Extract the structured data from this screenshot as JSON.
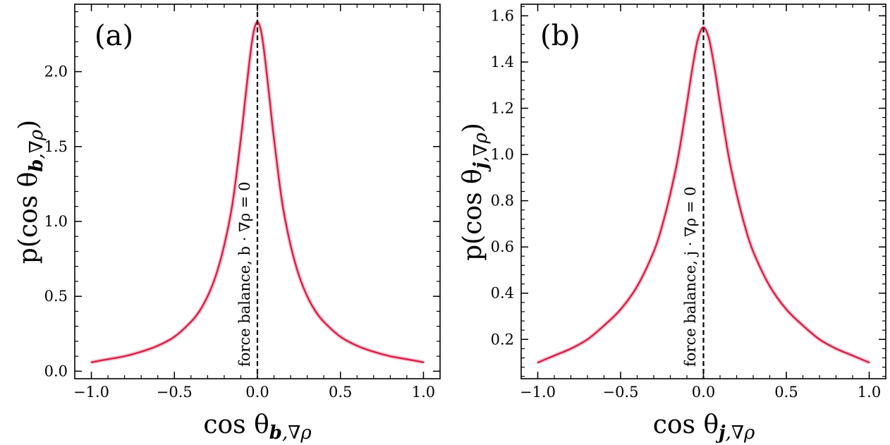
{
  "chart_data": [
    {
      "type": "line",
      "panel_label": "(a)",
      "xlabel_main": "cos θ",
      "xlabel_sub_bold": "b",
      "xlabel_sub_rest": ",∇ρ",
      "ylabel_pre": "p(cos θ",
      "ylabel_sub_bold": "b",
      "ylabel_sub_rest": ",∇ρ",
      "ylabel_post": ")",
      "xlim": [
        -1.1,
        1.1
      ],
      "ylim": [
        -0.05,
        2.45
      ],
      "x_ticks": [
        -1.0,
        -0.5,
        0.0,
        0.5,
        1.0
      ],
      "x_tick_labels": [
        "−1.0",
        "−0.5",
        "0.0",
        "0.5",
        "1.0"
      ],
      "y_ticks": [
        0.0,
        0.5,
        1.0,
        1.5,
        2.0
      ],
      "y_tick_labels": [
        "0.0",
        "0.5",
        "1.0",
        "1.5",
        "2.0"
      ],
      "reference_line_x": 0.0,
      "annotation": "force balance, b · ∇ρ = 0",
      "series_color": "#d62048",
      "band_color": "#f4a6b6",
      "series": [
        {
          "name": "p(cos θ_b,∇ρ)",
          "x": [
            -1.0,
            -0.9,
            -0.8,
            -0.7,
            -0.6,
            -0.5,
            -0.4,
            -0.35,
            -0.3,
            -0.25,
            -0.2,
            -0.15,
            -0.1,
            -0.07,
            -0.04,
            -0.02,
            0.0,
            0.02,
            0.04,
            0.07,
            0.1,
            0.15,
            0.2,
            0.25,
            0.3,
            0.35,
            0.4,
            0.5,
            0.6,
            0.7,
            0.8,
            0.9,
            1.0
          ],
          "y": [
            0.06,
            0.08,
            0.1,
            0.13,
            0.17,
            0.23,
            0.33,
            0.4,
            0.5,
            0.64,
            0.84,
            1.12,
            1.55,
            1.85,
            2.14,
            2.28,
            2.33,
            2.28,
            2.14,
            1.85,
            1.55,
            1.12,
            0.84,
            0.64,
            0.5,
            0.4,
            0.33,
            0.23,
            0.17,
            0.13,
            0.1,
            0.08,
            0.06
          ]
        }
      ]
    },
    {
      "type": "line",
      "panel_label": "(b)",
      "xlabel_main": "cos θ",
      "xlabel_sub_bold": "j",
      "xlabel_sub_rest": ",∇ρ",
      "ylabel_pre": "p(cos θ",
      "ylabel_sub_bold": "j",
      "ylabel_sub_rest": ",∇ρ",
      "ylabel_post": ")",
      "xlim": [
        -1.1,
        1.1
      ],
      "ylim": [
        0.03,
        1.65
      ],
      "x_ticks": [
        -1.0,
        -0.5,
        0.0,
        0.5,
        1.0
      ],
      "x_tick_labels": [
        "−1.0",
        "−0.5",
        "0.0",
        "0.5",
        "1.0"
      ],
      "y_ticks": [
        0.2,
        0.4,
        0.6,
        0.8,
        1.0,
        1.2,
        1.4,
        1.6
      ],
      "y_tick_labels": [
        "0.2",
        "0.4",
        "0.6",
        "0.8",
        "1.0",
        "1.2",
        "1.4",
        "1.6"
      ],
      "reference_line_x": 0.0,
      "annotation": "force balance, j · ∇ρ = 0",
      "series_color": "#d62048",
      "band_color": "#f4a6b6",
      "series": [
        {
          "name": "p(cos θ_j,∇ρ)",
          "x": [
            -1.0,
            -0.9,
            -0.8,
            -0.7,
            -0.6,
            -0.5,
            -0.4,
            -0.3,
            -0.25,
            -0.2,
            -0.15,
            -0.1,
            -0.07,
            -0.04,
            -0.02,
            0.0,
            0.02,
            0.04,
            0.07,
            0.1,
            0.15,
            0.2,
            0.25,
            0.3,
            0.4,
            0.5,
            0.6,
            0.7,
            0.8,
            0.9,
            1.0
          ],
          "y": [
            0.1,
            0.13,
            0.16,
            0.2,
            0.26,
            0.33,
            0.43,
            0.58,
            0.69,
            0.83,
            1.0,
            1.22,
            1.36,
            1.48,
            1.53,
            1.55,
            1.53,
            1.48,
            1.36,
            1.22,
            1.0,
            0.83,
            0.69,
            0.58,
            0.43,
            0.33,
            0.26,
            0.2,
            0.16,
            0.13,
            0.1
          ]
        }
      ]
    }
  ]
}
